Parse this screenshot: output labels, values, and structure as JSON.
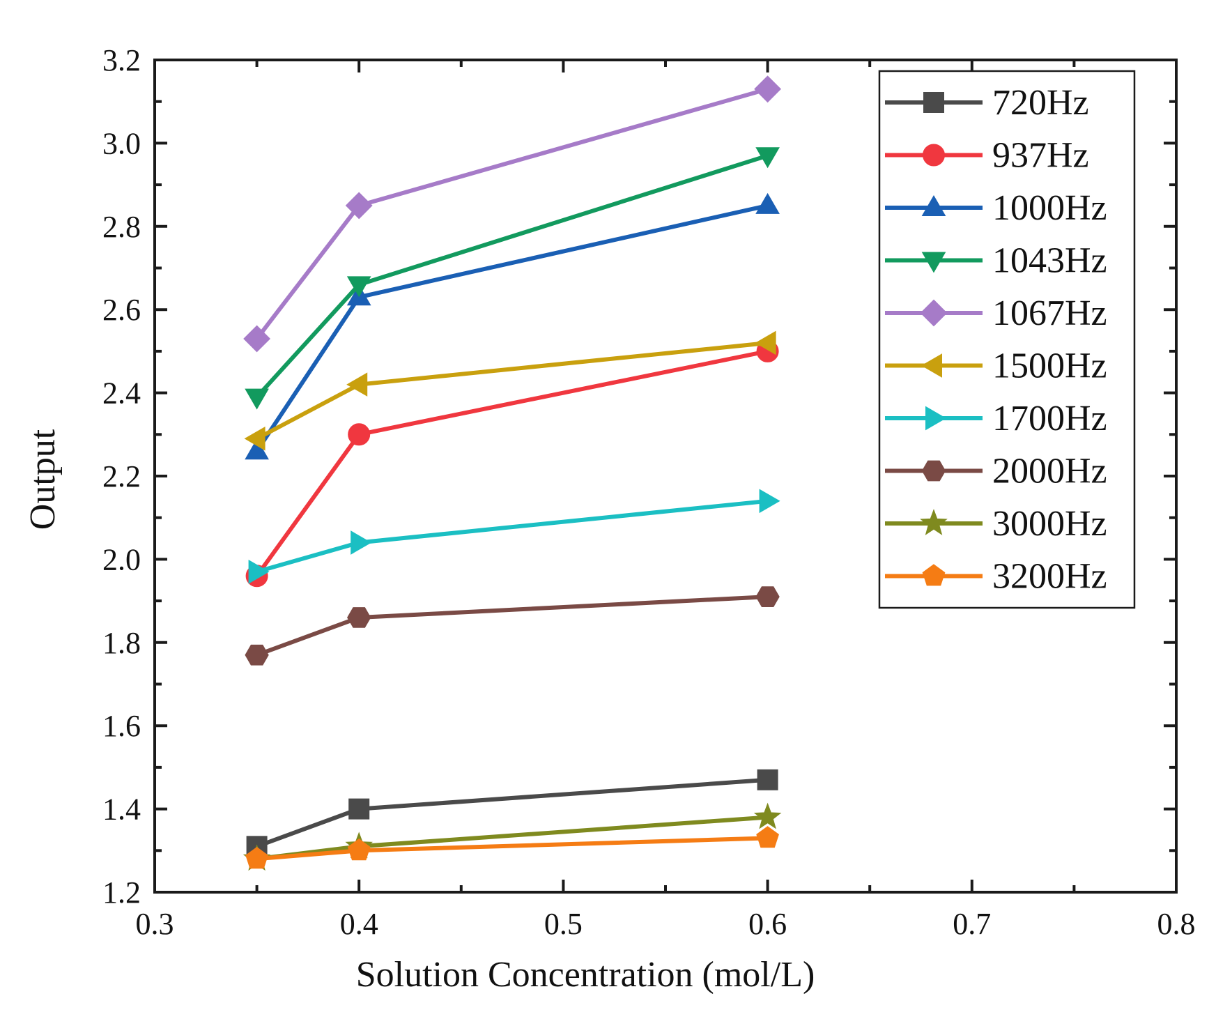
{
  "chart_data": {
    "type": "line",
    "title": "",
    "xlabel": "Solution Concentration (mol/L)",
    "ylabel": "Output",
    "xlim": [
      0.3,
      0.8
    ],
    "ylim": [
      1.2,
      3.2
    ],
    "xticks": [
      0.3,
      0.4,
      0.5,
      0.6,
      0.7,
      0.8
    ],
    "xtick_labels": [
      "0.3",
      "0.4",
      "0.5",
      "0.6",
      "0.7",
      "0.8"
    ],
    "yticks": [
      1.2,
      1.4,
      1.6,
      1.8,
      2.0,
      2.2,
      2.4,
      2.6,
      2.8,
      3.0,
      3.2
    ],
    "ytick_labels": [
      "1.2",
      "1.4",
      "1.6",
      "1.8",
      "2.0",
      "2.2",
      "2.4",
      "2.6",
      "2.8",
      "3.0",
      "3.2"
    ],
    "grid": false,
    "legend_position": "top-right",
    "x": [
      0.35,
      0.4,
      0.6
    ],
    "series": [
      {
        "name": "720Hz",
        "color": "#4a4a4a",
        "marker": "square",
        "values": [
          1.31,
          1.4,
          1.47
        ]
      },
      {
        "name": "937Hz",
        "color": "#f0373f",
        "marker": "circle",
        "values": [
          1.96,
          2.3,
          2.5
        ]
      },
      {
        "name": "1000Hz",
        "color": "#1a5fb4",
        "marker": "triangle-up",
        "values": [
          2.26,
          2.63,
          2.85
        ]
      },
      {
        "name": "1043Hz",
        "color": "#129a5e",
        "marker": "triangle-down",
        "values": [
          2.39,
          2.66,
          2.97
        ]
      },
      {
        "name": "1067Hz",
        "color": "#a67bc8",
        "marker": "diamond",
        "values": [
          2.53,
          2.85,
          3.13
        ]
      },
      {
        "name": "1500Hz",
        "color": "#c9a00e",
        "marker": "triangle-left",
        "values": [
          2.29,
          2.42,
          2.52
        ]
      },
      {
        "name": "1700Hz",
        "color": "#1bbfc3",
        "marker": "triangle-right",
        "values": [
          1.97,
          2.04,
          2.14
        ]
      },
      {
        "name": "2000Hz",
        "color": "#7a4a45",
        "marker": "hexagon",
        "values": [
          1.77,
          1.86,
          1.91
        ]
      },
      {
        "name": "3000Hz",
        "color": "#7f8a1f",
        "marker": "star",
        "values": [
          1.28,
          1.31,
          1.38
        ]
      },
      {
        "name": "3200Hz",
        "color": "#f57c14",
        "marker": "pentagon",
        "values": [
          1.28,
          1.3,
          1.33
        ]
      }
    ]
  }
}
